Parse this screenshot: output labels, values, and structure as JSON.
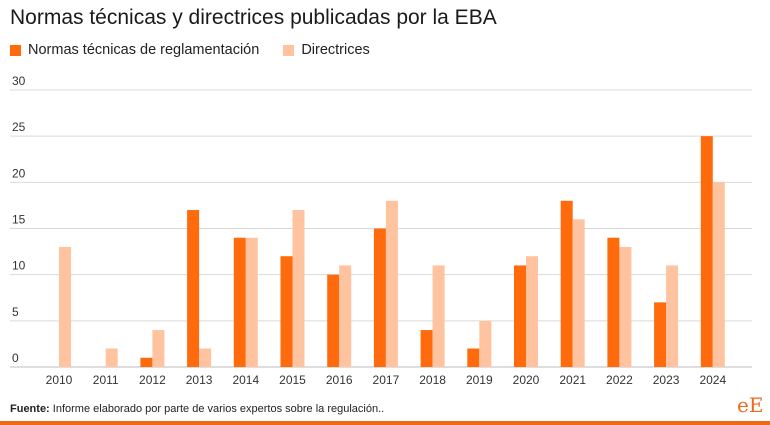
{
  "title": "Normas técnicas y directrices publicadas por la EBA",
  "colors": {
    "normas": "#ff6a0d",
    "directrices": "#ffc3a0",
    "grid": "#d9d9d9",
    "accent": "#ee6a1a"
  },
  "source": {
    "label": "Fuente:",
    "text": "Informe elaborado por parte de varios expertos sobre la regulación.."
  },
  "logo": {
    "text": "eE"
  },
  "chart_data": {
    "type": "bar",
    "title": "Normas técnicas y directrices publicadas por la EBA",
    "xlabel": "",
    "ylabel": "",
    "ylim": [
      0,
      30
    ],
    "yticks": [
      0,
      5,
      10,
      15,
      20,
      25,
      30
    ],
    "grid": true,
    "legend_position": "top-left",
    "categories": [
      "2010",
      "2011",
      "2012",
      "2013",
      "2014",
      "2015",
      "2016",
      "2017",
      "2018",
      "2019",
      "2020",
      "2021",
      "2022",
      "2023",
      "2024"
    ],
    "series": [
      {
        "name": "Normas técnicas de reglamentación",
        "values": [
          0,
          0,
          1,
          17,
          14,
          12,
          10,
          15,
          4,
          2,
          11,
          18,
          14,
          7,
          25
        ]
      },
      {
        "name": "Directrices",
        "values": [
          13,
          2,
          4,
          2,
          14,
          17,
          11,
          18,
          11,
          5,
          12,
          16,
          13,
          11,
          20
        ]
      }
    ]
  }
}
